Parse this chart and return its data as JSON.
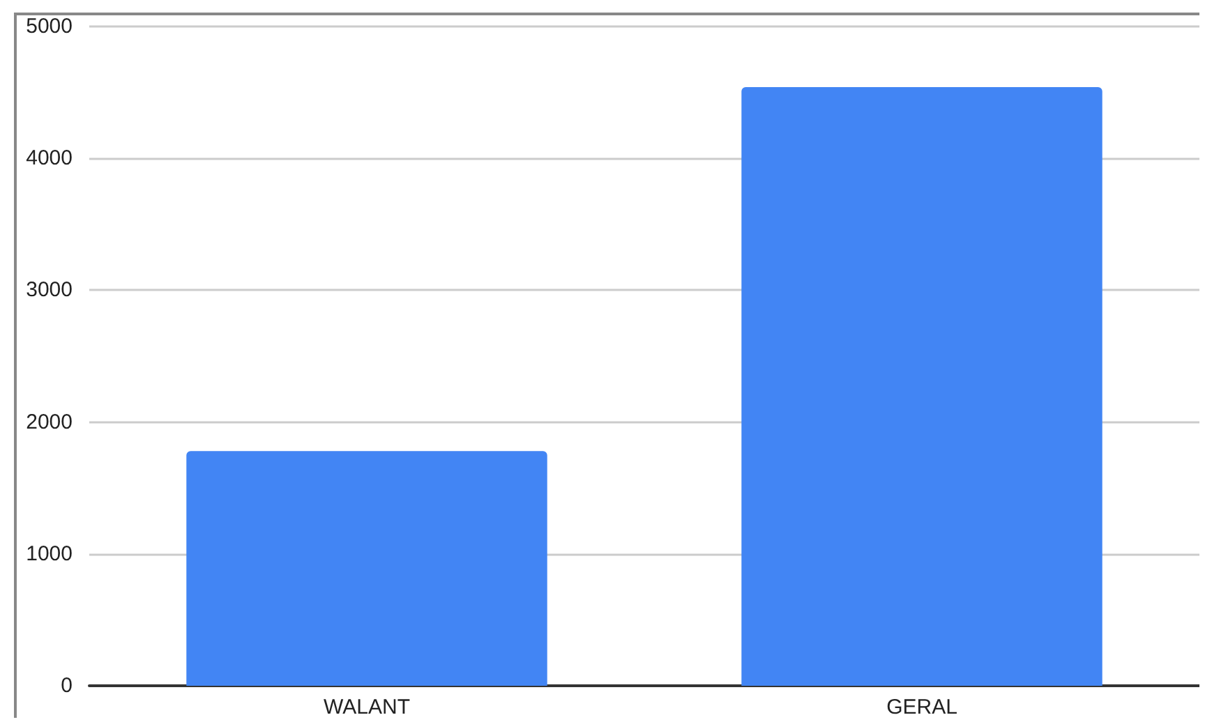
{
  "chart_data": {
    "type": "bar",
    "categories": [
      "WALANT",
      "GERAL"
    ],
    "series": [
      {
        "color": "#4285f4",
        "values": [
          1780,
          4540
        ]
      }
    ],
    "ylim": [
      0,
      5000
    ],
    "yticks": [
      0,
      1000,
      2000,
      3000,
      4000,
      5000
    ],
    "grid": "y"
  }
}
